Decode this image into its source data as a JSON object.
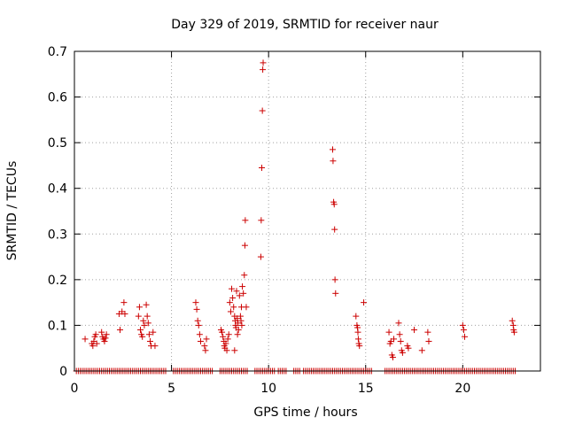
{
  "chart_data": {
    "type": "scatter",
    "title": "Day 329 of 2019, SRMTID for receiver naur",
    "xlabel": "GPS time / hours",
    "ylabel": "SRMTID / TECUs",
    "xlim": [
      0,
      24
    ],
    "ylim": [
      0,
      0.7
    ],
    "xticks": [
      0,
      5,
      10,
      15,
      20
    ],
    "yticks": [
      0,
      0.1,
      0.2,
      0.3,
      0.4,
      0.5,
      0.6,
      0.7
    ],
    "grid": true,
    "marker": "+",
    "color": "#cc0000",
    "series": [
      {
        "name": "SRMTID",
        "points": [
          [
            0.55,
            0.07
          ],
          [
            0.9,
            0.06
          ],
          [
            0.95,
            0.055
          ],
          [
            1.0,
            0.065
          ],
          [
            1.05,
            0.075
          ],
          [
            1.1,
            0.08
          ],
          [
            1.15,
            0.06
          ],
          [
            1.4,
            0.085
          ],
          [
            1.45,
            0.075
          ],
          [
            1.5,
            0.07
          ],
          [
            1.55,
            0.065
          ],
          [
            1.6,
            0.072
          ],
          [
            1.65,
            0.08
          ],
          [
            2.3,
            0.125
          ],
          [
            2.35,
            0.09
          ],
          [
            2.45,
            0.13
          ],
          [
            2.55,
            0.15
          ],
          [
            2.6,
            0.125
          ],
          [
            3.3,
            0.12
          ],
          [
            3.35,
            0.14
          ],
          [
            3.4,
            0.09
          ],
          [
            3.45,
            0.08
          ],
          [
            3.5,
            0.075
          ],
          [
            3.55,
            0.11
          ],
          [
            3.6,
            0.1
          ],
          [
            3.7,
            0.145
          ],
          [
            3.75,
            0.12
          ],
          [
            3.8,
            0.105
          ],
          [
            3.85,
            0.08
          ],
          [
            3.9,
            0.065
          ],
          [
            3.95,
            0.055
          ],
          [
            4.05,
            0.085
          ],
          [
            4.15,
            0.055
          ],
          [
            6.25,
            0.15
          ],
          [
            6.3,
            0.135
          ],
          [
            6.35,
            0.11
          ],
          [
            6.4,
            0.1
          ],
          [
            6.45,
            0.08
          ],
          [
            6.5,
            0.065
          ],
          [
            6.7,
            0.055
          ],
          [
            6.75,
            0.045
          ],
          [
            6.8,
            0.07
          ],
          [
            7.55,
            0.09
          ],
          [
            7.6,
            0.085
          ],
          [
            7.65,
            0.075
          ],
          [
            7.7,
            0.065
          ],
          [
            7.72,
            0.055
          ],
          [
            7.75,
            0.05
          ],
          [
            7.8,
            0.06
          ],
          [
            7.85,
            0.045
          ],
          [
            7.9,
            0.07
          ],
          [
            7.95,
            0.08
          ],
          [
            8.0,
            0.15
          ],
          [
            8.05,
            0.13
          ],
          [
            8.1,
            0.18
          ],
          [
            8.15,
            0.16
          ],
          [
            8.2,
            0.14
          ],
          [
            8.25,
            0.12
          ],
          [
            8.28,
            0.11
          ],
          [
            8.3,
            0.1
          ],
          [
            8.32,
            0.095
          ],
          [
            8.35,
            0.175
          ],
          [
            8.38,
            0.115
          ],
          [
            8.4,
            0.08
          ],
          [
            8.42,
            0.105
          ],
          [
            8.45,
            0.09
          ],
          [
            8.5,
            0.165
          ],
          [
            8.55,
            0.12
          ],
          [
            8.58,
            0.11
          ],
          [
            8.6,
            0.14
          ],
          [
            8.62,
            0.1
          ],
          [
            8.65,
            0.185
          ],
          [
            8.7,
            0.17
          ],
          [
            8.75,
            0.21
          ],
          [
            8.78,
            0.275
          ],
          [
            8.8,
            0.33
          ],
          [
            8.85,
            0.14
          ],
          [
            8.25,
            0.045
          ],
          [
            9.6,
            0.25
          ],
          [
            9.62,
            0.33
          ],
          [
            9.65,
            0.445
          ],
          [
            9.68,
            0.57
          ],
          [
            9.7,
            0.66
          ],
          [
            9.72,
            0.675
          ],
          [
            13.3,
            0.485
          ],
          [
            13.32,
            0.46
          ],
          [
            13.35,
            0.37
          ],
          [
            13.38,
            0.365
          ],
          [
            13.4,
            0.31
          ],
          [
            13.42,
            0.2
          ],
          [
            13.45,
            0.17
          ],
          [
            14.5,
            0.12
          ],
          [
            14.55,
            0.1
          ],
          [
            14.58,
            0.095
          ],
          [
            14.6,
            0.085
          ],
          [
            14.62,
            0.07
          ],
          [
            14.65,
            0.06
          ],
          [
            14.68,
            0.055
          ],
          [
            14.9,
            0.15
          ],
          [
            16.2,
            0.085
          ],
          [
            16.25,
            0.06
          ],
          [
            16.3,
            0.065
          ],
          [
            16.35,
            0.035
          ],
          [
            16.4,
            0.03
          ],
          [
            16.45,
            0.07
          ],
          [
            16.7,
            0.105
          ],
          [
            16.75,
            0.08
          ],
          [
            16.8,
            0.065
          ],
          [
            16.85,
            0.045
          ],
          [
            16.9,
            0.04
          ],
          [
            17.15,
            0.055
          ],
          [
            17.2,
            0.05
          ],
          [
            17.5,
            0.09
          ],
          [
            17.9,
            0.045
          ],
          [
            18.2,
            0.085
          ],
          [
            18.25,
            0.065
          ],
          [
            20.0,
            0.1
          ],
          [
            20.05,
            0.09
          ],
          [
            20.1,
            0.075
          ],
          [
            22.55,
            0.11
          ],
          [
            22.6,
            0.1
          ],
          [
            22.62,
            0.09
          ],
          [
            22.65,
            0.085
          ]
        ],
        "baseline_x": [
          0.1,
          0.2,
          0.3,
          0.4,
          0.5,
          0.6,
          0.7,
          0.8,
          0.9,
          1.0,
          1.1,
          1.2,
          1.3,
          1.4,
          1.5,
          1.6,
          1.7,
          1.8,
          1.9,
          2.0,
          2.1,
          2.2,
          2.3,
          2.4,
          2.5,
          2.6,
          2.7,
          2.8,
          2.9,
          3.0,
          3.1,
          3.2,
          3.3,
          3.4,
          3.5,
          3.6,
          3.7,
          3.8,
          3.9,
          4.0,
          4.1,
          4.2,
          4.3,
          4.4,
          4.5,
          4.6,
          4.7,
          5.1,
          5.2,
          5.3,
          5.4,
          5.5,
          5.6,
          5.7,
          5.8,
          5.9,
          6.0,
          6.1,
          6.2,
          6.3,
          6.4,
          6.5,
          6.6,
          6.7,
          6.8,
          6.9,
          7.0,
          7.1,
          7.5,
          7.6,
          7.7,
          7.8,
          7.9,
          8.0,
          8.1,
          8.2,
          8.3,
          8.4,
          8.5,
          8.6,
          8.7,
          8.8,
          8.9,
          9.3,
          9.4,
          9.5,
          9.6,
          9.7,
          9.8,
          9.9,
          10.0,
          10.1,
          10.2,
          10.3,
          10.5,
          10.6,
          10.7,
          10.8,
          10.9,
          11.3,
          11.4,
          11.5,
          11.6,
          11.8,
          11.9,
          12.0,
          12.1,
          12.2,
          12.3,
          12.4,
          12.5,
          12.6,
          12.7,
          12.8,
          12.9,
          13.0,
          13.1,
          13.2,
          13.3,
          13.4,
          13.5,
          13.6,
          13.7,
          13.8,
          13.9,
          14.0,
          14.1,
          14.2,
          14.3,
          14.4,
          14.5,
          14.6,
          14.7,
          14.8,
          14.9,
          15.0,
          15.1,
          15.2,
          15.3,
          16.0,
          16.1,
          16.2,
          16.3,
          16.4,
          16.5,
          16.6,
          16.7,
          16.8,
          16.9,
          17.0,
          17.1,
          17.2,
          17.3,
          17.4,
          17.5,
          17.6,
          17.7,
          17.8,
          17.9,
          18.0,
          18.1,
          18.2,
          18.3,
          18.4,
          18.5,
          18.6,
          18.7,
          18.8,
          18.9,
          19.0,
          19.1,
          19.2,
          19.3,
          19.4,
          19.5,
          19.6,
          19.7,
          19.8,
          19.9,
          20.0,
          20.1,
          20.2,
          20.3,
          20.4,
          20.5,
          20.6,
          20.7,
          20.8,
          20.9,
          21.0,
          21.1,
          21.2,
          21.3,
          21.4,
          21.5,
          21.6,
          21.7,
          21.8,
          21.9,
          22.0,
          22.1,
          22.2,
          22.3,
          22.4,
          22.5,
          22.6,
          22.7
        ],
        "baseline_y": 0
      }
    ]
  }
}
